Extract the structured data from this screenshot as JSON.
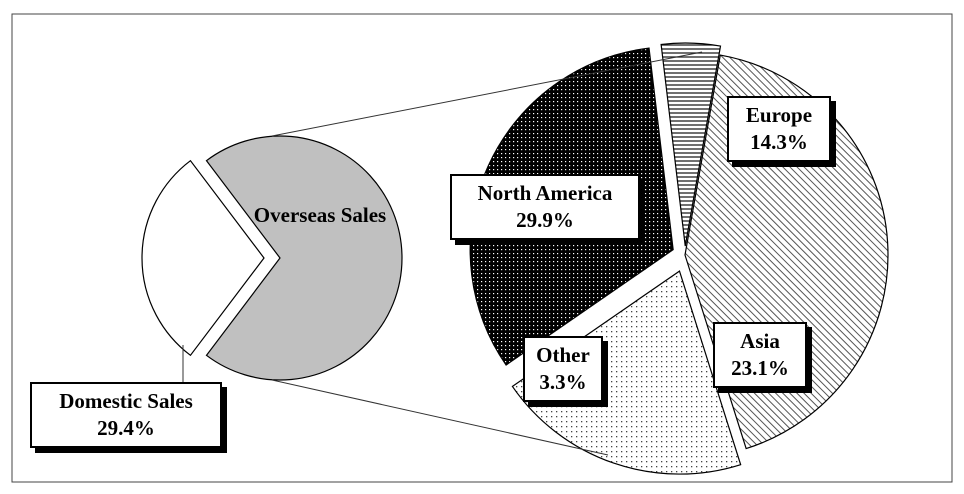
{
  "chart_data": [
    {
      "type": "pie",
      "categories": [
        "Domestic Sales",
        "Overseas Sales"
      ],
      "values": [
        29.4,
        70.6
      ],
      "value_labels": [
        "29.4%",
        null
      ],
      "colors": [
        "#ffffff",
        "#c0c0c0"
      ]
    },
    {
      "type": "pie",
      "categories": [
        "North America",
        "Europe",
        "Asia",
        "Other"
      ],
      "values": [
        29.9,
        14.3,
        23.1,
        3.3
      ],
      "value_labels": [
        "29.9%",
        "14.3%",
        "23.1%",
        "3.3%"
      ],
      "patterns": [
        "diagonal-lines",
        "sparse-dots",
        "dense-dots",
        "horizontal-lines"
      ]
    }
  ]
}
